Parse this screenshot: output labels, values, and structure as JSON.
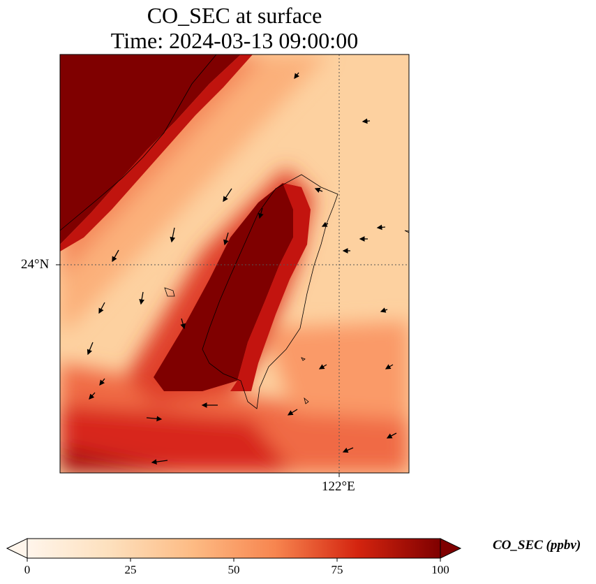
{
  "title": {
    "line1": "CO_SEC at surface",
    "line2": "Time: 2024-03-13 09:00:00"
  },
  "axes": {
    "lat_ticks": [
      "24°N"
    ],
    "lon_ticks": [
      "122°E"
    ]
  },
  "colorbar": {
    "label": "CO_SEC (ppbv)",
    "ticks": [
      "0",
      "25",
      "50",
      "75",
      "100"
    ],
    "range": [
      0,
      100
    ],
    "colormap": [
      "#fff5eb",
      "#fdd7a6",
      "#fdae6b",
      "#f16b3a",
      "#bd1d12",
      "#7f0000"
    ]
  },
  "colors": {
    "very_high": "#7f0000",
    "high": "#c41a10",
    "medium": "#f47b4e",
    "low": "#fdd6a0",
    "coastline": "#000000"
  }
}
